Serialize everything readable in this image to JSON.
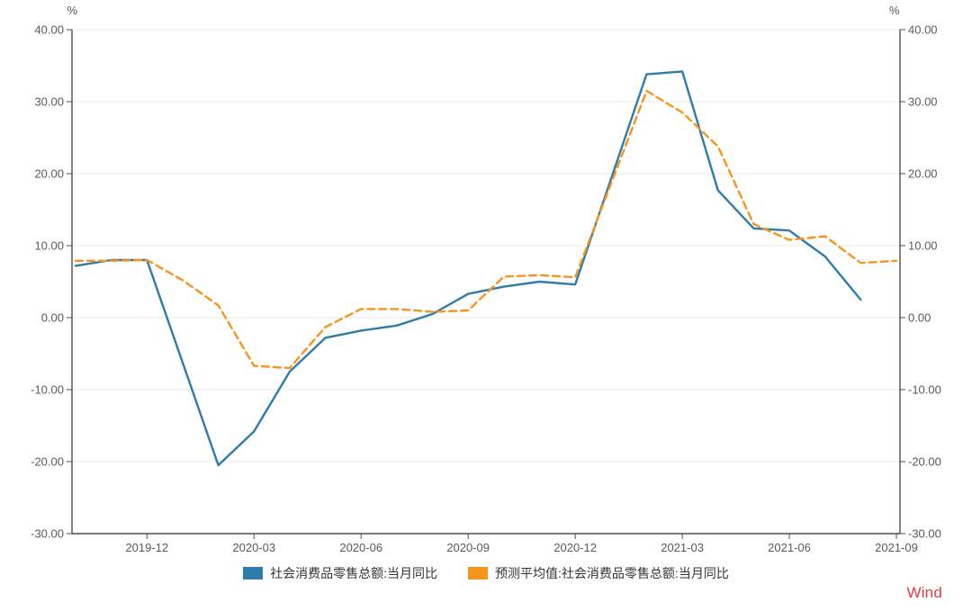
{
  "chart_data": {
    "type": "line",
    "title": "",
    "unit_left": "%",
    "unit_right": "%",
    "x": [
      "2019-10",
      "2019-11",
      "2019-12",
      "2020-01",
      "2020-02",
      "2020-03",
      "2020-04",
      "2020-05",
      "2020-06",
      "2020-07",
      "2020-08",
      "2020-09",
      "2020-10",
      "2020-11",
      "2020-12",
      "2021-01",
      "2021-02",
      "2021-03",
      "2021-04",
      "2021-05",
      "2021-06",
      "2021-07",
      "2021-08",
      "2021-09"
    ],
    "x_tick_labels": [
      "2019-12",
      "2020-03",
      "2020-06",
      "2020-09",
      "2020-12",
      "2021-03",
      "2021-06",
      "2021-09"
    ],
    "x_tick_indices": [
      2,
      5,
      8,
      11,
      14,
      17,
      20,
      23
    ],
    "y_tick_values": [
      40,
      30,
      20,
      10,
      0,
      -10,
      -20,
      -30
    ],
    "y_tick_labels": [
      "40.00",
      "30.00",
      "20.00",
      "10.00",
      "0.00",
      "-10.00",
      "-20.00",
      "-30.00"
    ],
    "ylim": [
      -30,
      40
    ],
    "grid": true,
    "legend_position": "bottom",
    "series": [
      {
        "name": "社会消费品零售总额:当月同比",
        "color": "#2e7ca9",
        "style": "solid",
        "values": [
          7.2,
          8.0,
          8.0,
          null,
          -20.5,
          -15.8,
          -7.5,
          -2.8,
          -1.8,
          -1.1,
          0.5,
          3.3,
          4.3,
          5.0,
          4.6,
          null,
          33.8,
          34.2,
          17.7,
          12.4,
          12.1,
          8.5,
          2.5,
          null
        ]
      },
      {
        "name": "预测平均值:社会消费品零售总额:当月同比",
        "color": "#f7941e",
        "style": "dashed",
        "values": [
          7.9,
          7.9,
          8.0,
          5.2,
          1.7,
          -6.7,
          -7.0,
          -1.3,
          1.2,
          1.2,
          0.8,
          1.0,
          5.7,
          5.9,
          5.6,
          null,
          31.5,
          28.5,
          23.8,
          13.0,
          10.8,
          11.3,
          7.6,
          7.9
        ]
      }
    ]
  },
  "colors": {
    "grid": "#e8e8e8",
    "axis": "#4d4d4d",
    "tick_text": "#595959",
    "brand": "#e03b3c"
  },
  "branding": {
    "wind_label": "Wind"
  }
}
